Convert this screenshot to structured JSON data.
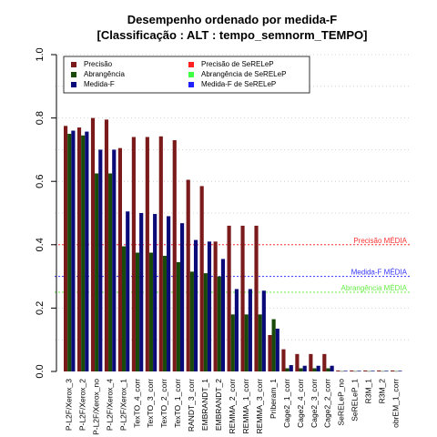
{
  "chart_data": {
    "type": "bar",
    "title": "Desempenho ordenado por medida-F",
    "subtitle": "[Classificação : ALT : tempo_semnorm_TEMPO]",
    "xlabel": "",
    "ylabel": "",
    "ylim": [
      0,
      1
    ],
    "yticks": [
      "0.0",
      "0.2",
      "0.4",
      "0.6",
      "0.8",
      "1.0"
    ],
    "grid": "horizontal dotted",
    "legend_position": "top",
    "categories": [
      "P-L2F/Xerox_3",
      "P-L2F/Xerox_2",
      "P-L2F/Xerox_no",
      "P-L2F/Xerox_4",
      "P-L2F/Xerox_1",
      "TexTO_4_corr",
      "TexTO_3_corr",
      "TexTO_2_corr",
      "TexTO_1_corr",
      "RANDT_3_corr",
      "EMBRANDT_1",
      "EMBRANDT_2",
      "REMMA_2_corr",
      "REMMA_1_corr",
      "REMMA_3_corr",
      "Priberam_1",
      "Cage2_1_corr",
      "Cage2_4_corr",
      "Cage2_3_corr",
      "Cage2_2_corr",
      "SeRELeP_no",
      "SeRELeP_1",
      "R3M_1",
      "R3M_2",
      "obrEM_1_corr"
    ],
    "series": [
      {
        "name": "Precisão",
        "color": "#7a1a1a",
        "values": [
          0.775,
          0.77,
          0.8,
          0.795,
          0.705,
          0.74,
          0.74,
          0.742,
          0.73,
          0.605,
          0.585,
          0.41,
          0.46,
          0.46,
          0.46,
          0.115,
          0.07,
          0.055,
          0.055,
          0.055,
          0.003,
          0.003,
          0.003,
          0.003,
          0.003
        ]
      },
      {
        "name": "Abrangência",
        "color": "#1a4a0a",
        "values": [
          0.75,
          0.745,
          0.625,
          0.625,
          0.395,
          0.375,
          0.375,
          0.365,
          0.345,
          0.315,
          0.31,
          0.3,
          0.18,
          0.18,
          0.18,
          0.165,
          0.01,
          0.01,
          0.01,
          0.01,
          0.001,
          0.001,
          0.001,
          0.001,
          0.001
        ]
      },
      {
        "name": "Medida-F",
        "color": "#0a0a78",
        "values": [
          0.76,
          0.757,
          0.7,
          0.7,
          0.505,
          0.5,
          0.497,
          0.49,
          0.468,
          0.415,
          0.41,
          0.355,
          0.26,
          0.26,
          0.255,
          0.135,
          0.02,
          0.018,
          0.018,
          0.018,
          0.002,
          0.002,
          0.002,
          0.002,
          0.002
        ]
      }
    ],
    "legend": [
      {
        "label": "Precisão",
        "color": "#7a1a1a"
      },
      {
        "label": "Abrangência",
        "color": "#1a4a0a"
      },
      {
        "label": "Medida-F",
        "color": "#0a0a78"
      },
      {
        "label": "Precisão  de  SeRELeP",
        "color": "#ff2020"
      },
      {
        "label": "Abrangência  de  SeRELeP",
        "color": "#40ff40"
      },
      {
        "label": "Medida-F  de  SeRELeP",
        "color": "#2020ff"
      }
    ],
    "reference_lines": [
      {
        "label": "Precisão MÉDIA",
        "value": 0.4,
        "color": "#ff3333"
      },
      {
        "label": "Medida-F MÉDIA",
        "value": 0.3,
        "color": "#3333ff"
      },
      {
        "label": "Abrangência MÉDIA",
        "value": 0.25,
        "color": "#66ee44"
      }
    ]
  }
}
